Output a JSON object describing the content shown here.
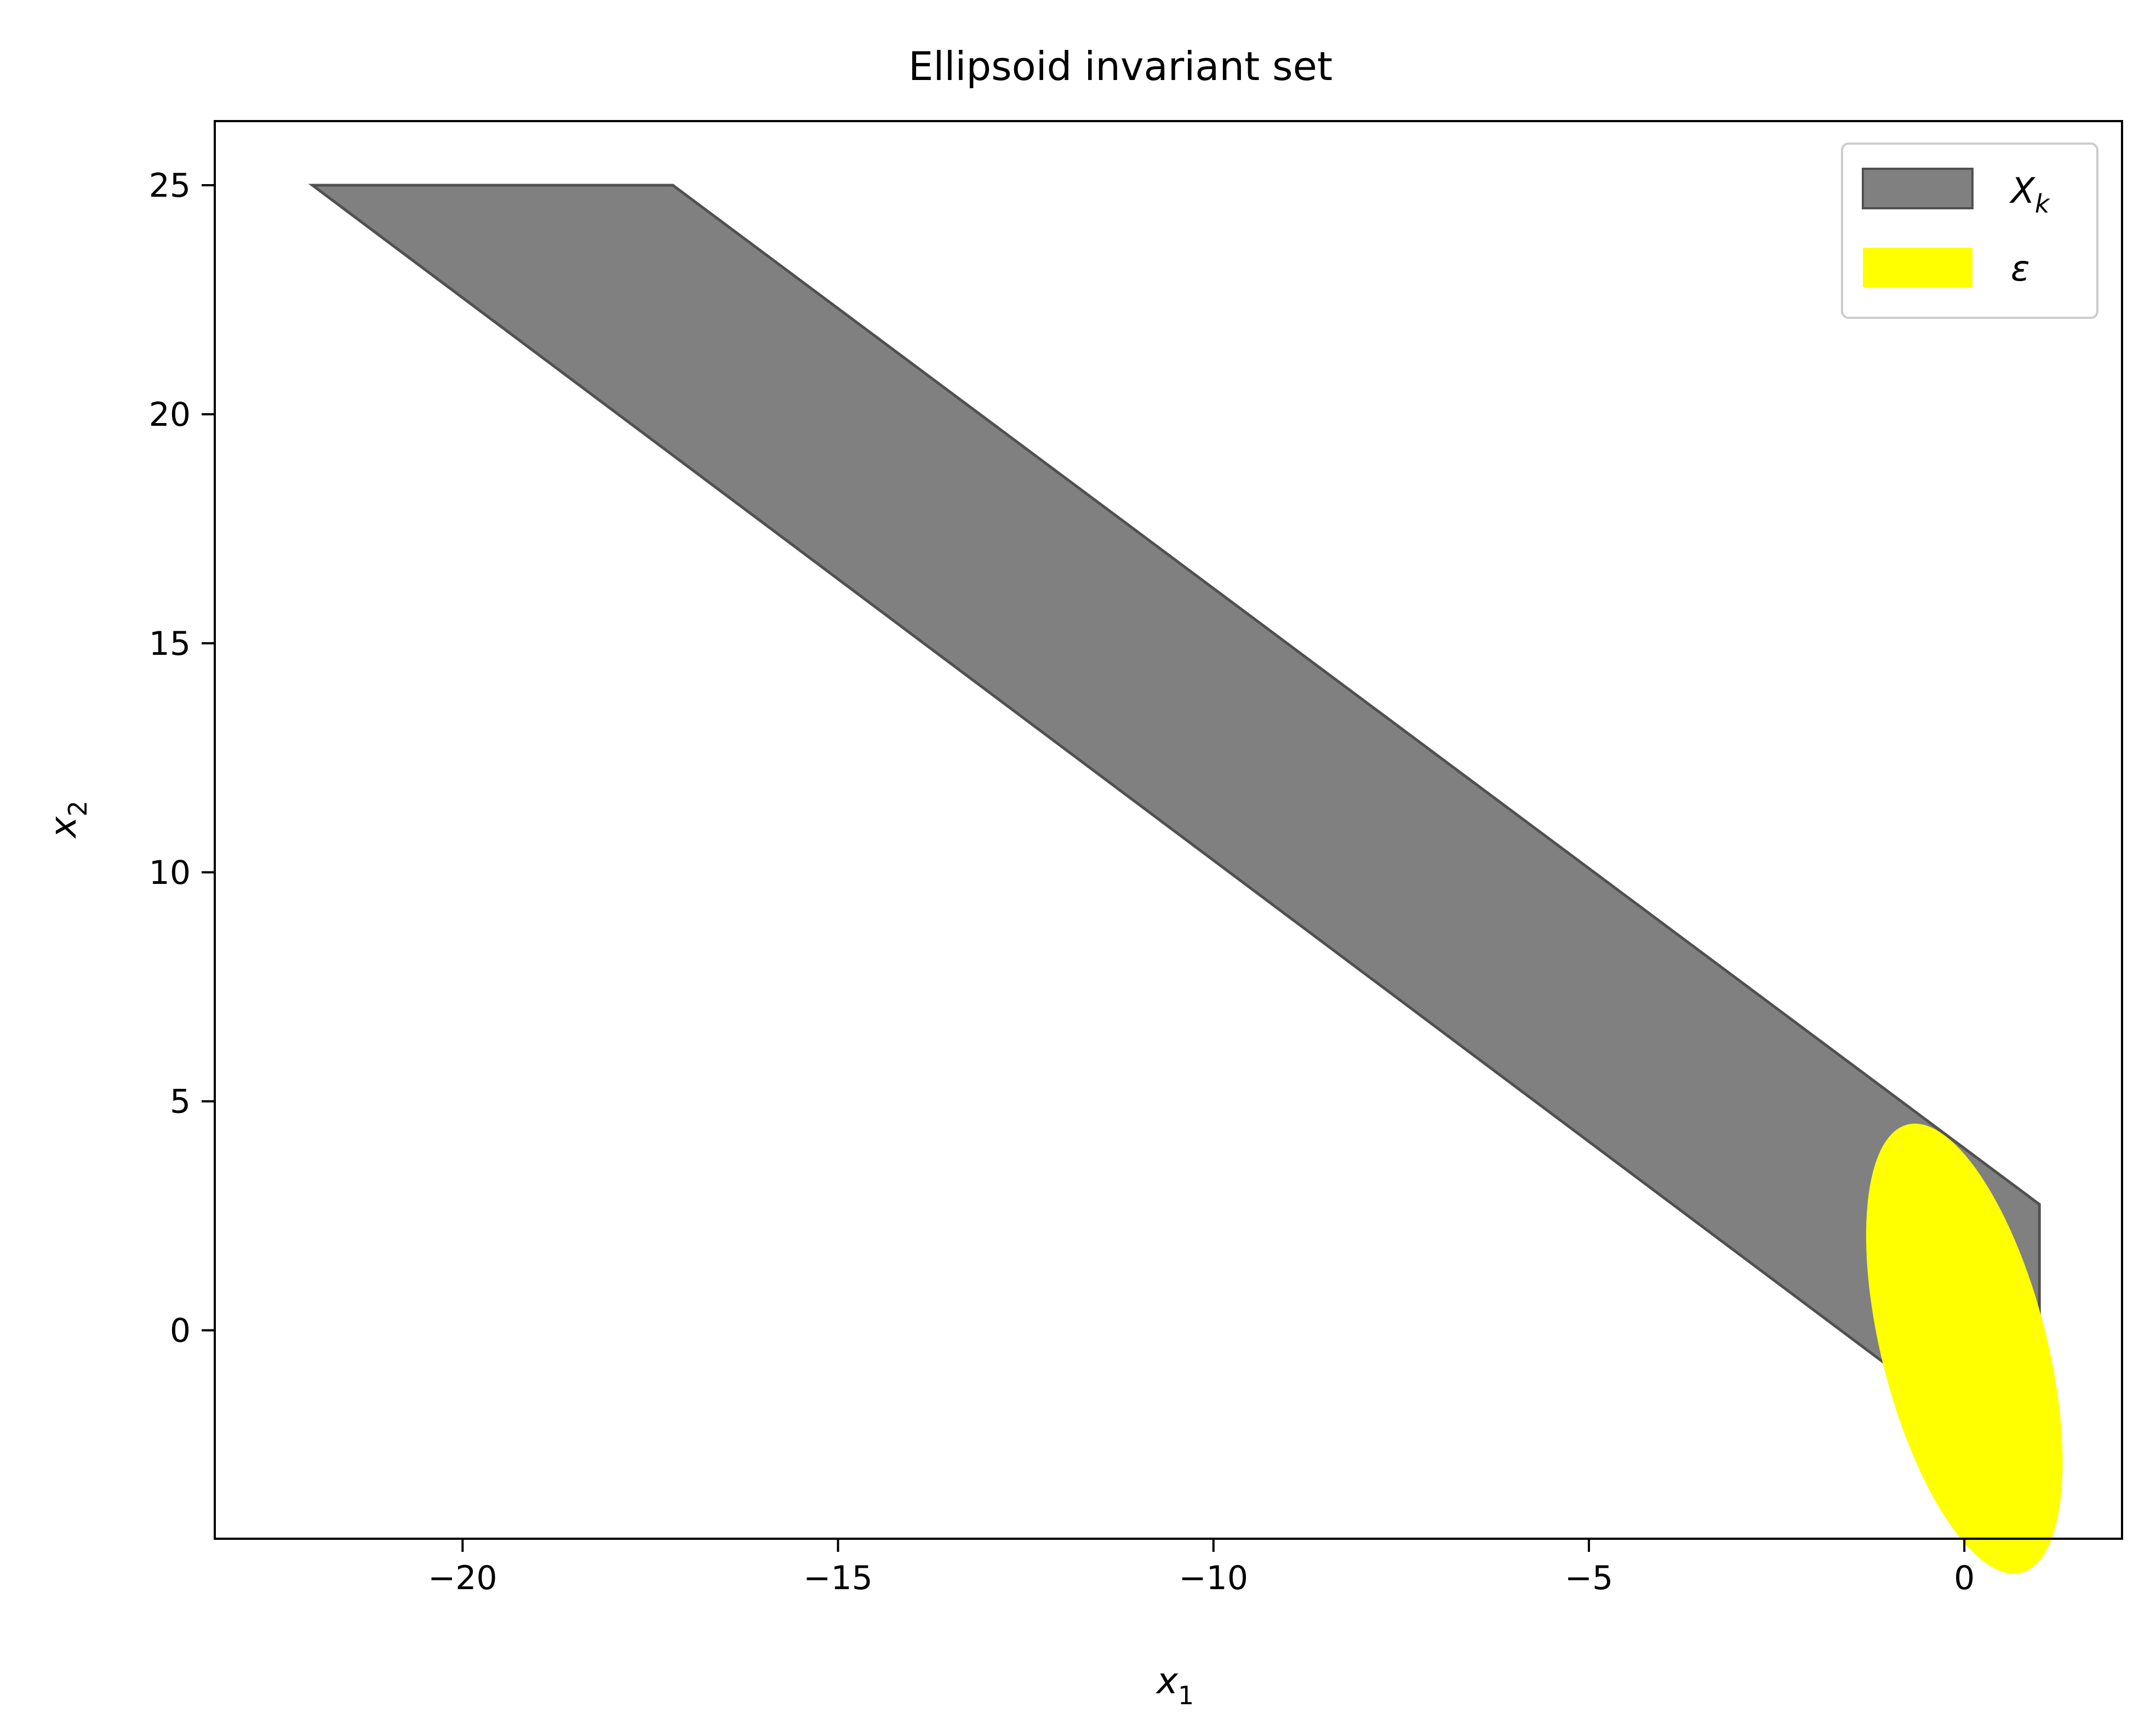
{
  "chart_data": {
    "type": "area",
    "title": "Ellipsoid invariant set",
    "xlabel": {
      "base": "x",
      "sub": "1"
    },
    "ylabel": {
      "base": "x",
      "sub": "2"
    },
    "xlim": [
      -23.3,
      2.1
    ],
    "ylim": [
      -4.55,
      26.4
    ],
    "xticks": [
      -20,
      -15,
      -10,
      -5,
      0
    ],
    "yticks": [
      0,
      5,
      10,
      15,
      20,
      25
    ],
    "xtick_labels": [
      "−20",
      "−15",
      "−10",
      "−5",
      "0"
    ],
    "ytick_labels": [
      "0",
      "5",
      "10",
      "15",
      "20",
      "25"
    ],
    "grid": false,
    "legend_position": "top-right",
    "series": [
      {
        "name": {
          "base": "X",
          "sub": "k"
        },
        "kind": "polygon",
        "fill": "#808080",
        "edge": "#505050",
        "points": [
          [
            -22.0,
            25.0
          ],
          [
            -17.2,
            25.0
          ],
          [
            1.0,
            2.75
          ],
          [
            1.0,
            -3.25
          ]
        ]
      },
      {
        "name": {
          "base": "ε",
          "sub": ""
        },
        "kind": "ellipse",
        "fill": "#ffff00",
        "center": [
          0.0,
          -0.4
        ],
        "semi_axis_major": 4.96,
        "semi_axis_minor": 1.12,
        "major_axis_direction": [
          0.14,
          -0.99
        ]
      }
    ]
  }
}
